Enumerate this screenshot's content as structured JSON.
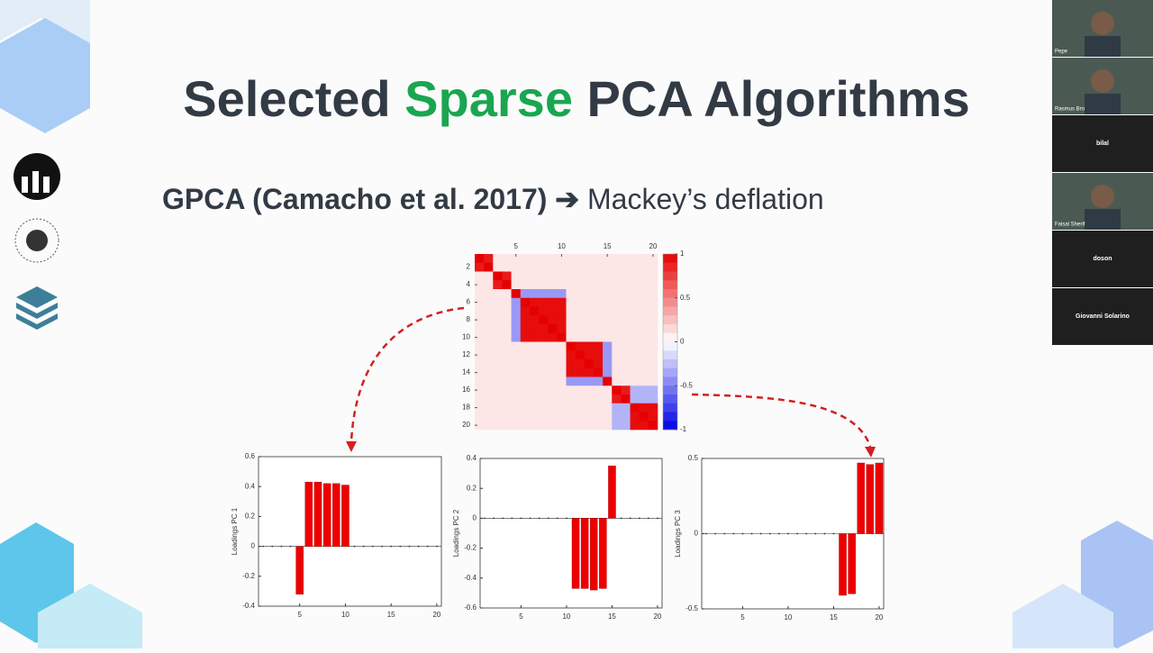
{
  "slide": {
    "title": {
      "before": "Selected",
      "highlight": "Sparse",
      "after": "PCA Algorithms"
    },
    "subtitle": {
      "reference": "GPCA (Camacho et al. 2017)",
      "arrow": "➔",
      "method": "Mackey’s deflation"
    }
  },
  "participants": [
    "Pepe",
    "Rasmus Bro",
    "bilal",
    "Faisal Sherif",
    "doson",
    "Giovanni Solarino"
  ],
  "chart_data": [
    {
      "type": "heatmap",
      "xticks": [
        5,
        10,
        15,
        20
      ],
      "yticks": [
        2,
        4,
        6,
        8,
        10,
        12,
        14,
        16,
        18,
        20
      ],
      "clim": [
        -1,
        1
      ],
      "cticks": [
        1,
        0.5,
        0,
        -0.5,
        -1
      ],
      "matrix": [
        [
          1,
          0.9,
          0.1,
          0.1,
          0.1,
          0.1,
          0.1,
          0.1,
          0.1,
          0.1,
          0.1,
          0.1,
          0.1,
          0.1,
          0.1,
          0.1,
          0.1,
          0.1,
          0.1,
          0.1
        ],
        [
          0.9,
          1,
          0.1,
          0.1,
          0.1,
          0.1,
          0.1,
          0.1,
          0.1,
          0.1,
          0.1,
          0.1,
          0.1,
          0.1,
          0.1,
          0.1,
          0.1,
          0.1,
          0.1,
          0.1
        ],
        [
          0.1,
          0.1,
          1,
          0.9,
          0.1,
          0.1,
          0.1,
          0.1,
          0.1,
          0.1,
          0.1,
          0.1,
          0.1,
          0.1,
          0.1,
          0.1,
          0.1,
          0.1,
          0.1,
          0.1
        ],
        [
          0.1,
          0.1,
          0.9,
          1,
          0.1,
          0.1,
          0.1,
          0.1,
          0.1,
          0.1,
          0.1,
          0.1,
          0.1,
          0.1,
          0.1,
          0.1,
          0.1,
          0.1,
          0.1,
          0.1
        ],
        [
          0.1,
          0.1,
          0.1,
          0.1,
          1,
          -0.4,
          -0.4,
          -0.4,
          -0.4,
          -0.4,
          0.1,
          0.1,
          0.1,
          0.1,
          0.1,
          0.1,
          0.1,
          0.1,
          0.1,
          0.1
        ],
        [
          0.1,
          0.1,
          0.1,
          0.1,
          -0.4,
          1,
          0.95,
          0.95,
          0.95,
          0.95,
          0.1,
          0.1,
          0.1,
          0.1,
          0.1,
          0.1,
          0.1,
          0.1,
          0.1,
          0.1
        ],
        [
          0.1,
          0.1,
          0.1,
          0.1,
          -0.4,
          0.95,
          1,
          0.95,
          0.95,
          0.95,
          0.1,
          0.1,
          0.1,
          0.1,
          0.1,
          0.1,
          0.1,
          0.1,
          0.1,
          0.1
        ],
        [
          0.1,
          0.1,
          0.1,
          0.1,
          -0.4,
          0.95,
          0.95,
          1,
          0.95,
          0.95,
          0.1,
          0.1,
          0.1,
          0.1,
          0.1,
          0.1,
          0.1,
          0.1,
          0.1,
          0.1
        ],
        [
          0.1,
          0.1,
          0.1,
          0.1,
          -0.4,
          0.95,
          0.95,
          0.95,
          1,
          0.95,
          0.1,
          0.1,
          0.1,
          0.1,
          0.1,
          0.1,
          0.1,
          0.1,
          0.1,
          0.1
        ],
        [
          0.1,
          0.1,
          0.1,
          0.1,
          -0.4,
          0.95,
          0.95,
          0.95,
          0.95,
          1,
          0.1,
          0.1,
          0.1,
          0.1,
          0.1,
          0.1,
          0.1,
          0.1,
          0.1,
          0.1
        ],
        [
          0.1,
          0.1,
          0.1,
          0.1,
          0.1,
          0.1,
          0.1,
          0.1,
          0.1,
          0.1,
          1,
          0.95,
          0.95,
          0.95,
          -0.4,
          0.1,
          0.1,
          0.1,
          0.1,
          0.1
        ],
        [
          0.1,
          0.1,
          0.1,
          0.1,
          0.1,
          0.1,
          0.1,
          0.1,
          0.1,
          0.1,
          0.95,
          1,
          0.95,
          0.95,
          -0.4,
          0.1,
          0.1,
          0.1,
          0.1,
          0.1
        ],
        [
          0.1,
          0.1,
          0.1,
          0.1,
          0.1,
          0.1,
          0.1,
          0.1,
          0.1,
          0.1,
          0.95,
          0.95,
          1,
          0.95,
          -0.4,
          0.1,
          0.1,
          0.1,
          0.1,
          0.1
        ],
        [
          0.1,
          0.1,
          0.1,
          0.1,
          0.1,
          0.1,
          0.1,
          0.1,
          0.1,
          0.1,
          0.95,
          0.95,
          0.95,
          1,
          -0.4,
          0.1,
          0.1,
          0.1,
          0.1,
          0.1
        ],
        [
          0.1,
          0.1,
          0.1,
          0.1,
          0.1,
          0.1,
          0.1,
          0.1,
          0.1,
          0.1,
          -0.4,
          -0.4,
          -0.4,
          -0.4,
          1,
          0.1,
          0.1,
          0.1,
          0.1,
          0.1
        ],
        [
          0.1,
          0.1,
          0.1,
          0.1,
          0.1,
          0.1,
          0.1,
          0.1,
          0.1,
          0.1,
          0.1,
          0.1,
          0.1,
          0.1,
          0.1,
          1,
          0.9,
          -0.3,
          -0.3,
          -0.3
        ],
        [
          0.1,
          0.1,
          0.1,
          0.1,
          0.1,
          0.1,
          0.1,
          0.1,
          0.1,
          0.1,
          0.1,
          0.1,
          0.1,
          0.1,
          0.1,
          0.9,
          1,
          -0.3,
          -0.3,
          -0.3
        ],
        [
          0.1,
          0.1,
          0.1,
          0.1,
          0.1,
          0.1,
          0.1,
          0.1,
          0.1,
          0.1,
          0.1,
          0.1,
          0.1,
          0.1,
          0.1,
          -0.3,
          -0.3,
          1,
          0.95,
          0.95
        ],
        [
          0.1,
          0.1,
          0.1,
          0.1,
          0.1,
          0.1,
          0.1,
          0.1,
          0.1,
          0.1,
          0.1,
          0.1,
          0.1,
          0.1,
          0.1,
          -0.3,
          -0.3,
          0.95,
          1,
          0.95
        ],
        [
          0.1,
          0.1,
          0.1,
          0.1,
          0.1,
          0.1,
          0.1,
          0.1,
          0.1,
          0.1,
          0.1,
          0.1,
          0.1,
          0.1,
          0.1,
          -0.3,
          -0.3,
          0.95,
          0.95,
          1
        ]
      ]
    },
    {
      "type": "bar",
      "y_label": "Loadings PC 1",
      "color": "#ee0000",
      "x": [
        1,
        2,
        3,
        4,
        5,
        6,
        7,
        8,
        9,
        10,
        11,
        12,
        13,
        14,
        15,
        16,
        17,
        18,
        19,
        20
      ],
      "values": [
        0,
        0,
        0,
        0,
        -0.32,
        0.43,
        0.43,
        0.42,
        0.42,
        0.41,
        0,
        0,
        0,
        0,
        0,
        0,
        0,
        0,
        0,
        0
      ],
      "xlim": [
        0.5,
        20.5
      ],
      "xticks": [
        5,
        10,
        15,
        20
      ],
      "ylim": [
        -0.4,
        0.6
      ],
      "yticks": [
        -0.4,
        -0.2,
        0,
        0.2,
        0.4,
        0.6
      ]
    },
    {
      "type": "bar",
      "y_label": "Loadings PC 2",
      "color": "#ee0000",
      "x": [
        1,
        2,
        3,
        4,
        5,
        6,
        7,
        8,
        9,
        10,
        11,
        12,
        13,
        14,
        15,
        16,
        17,
        18,
        19,
        20
      ],
      "values": [
        0,
        0,
        0,
        0,
        0,
        0,
        0,
        0,
        0,
        0,
        -0.47,
        -0.47,
        -0.48,
        -0.47,
        0.35,
        0,
        0,
        0,
        0,
        0
      ],
      "xlim": [
        0.5,
        20.5
      ],
      "xticks": [
        5,
        10,
        15,
        20
      ],
      "ylim": [
        -0.6,
        0.4
      ],
      "yticks": [
        -0.6,
        -0.4,
        -0.2,
        0,
        0.2,
        0.4
      ]
    },
    {
      "type": "bar",
      "y_label": "Loadings PC 3",
      "color": "#ee0000",
      "x": [
        1,
        2,
        3,
        4,
        5,
        6,
        7,
        8,
        9,
        10,
        11,
        12,
        13,
        14,
        15,
        16,
        17,
        18,
        19,
        20
      ],
      "values": [
        0,
        0,
        0,
        0,
        0,
        0,
        0,
        0,
        0,
        0,
        0,
        0,
        0,
        0,
        0,
        -0.41,
        -0.4,
        0.47,
        0.46,
        0.47
      ],
      "xlim": [
        0.5,
        20.5
      ],
      "xticks": [
        5,
        10,
        15,
        20
      ],
      "ylim": [
        -0.5,
        0.5
      ],
      "yticks": [
        -0.5,
        0,
        0.5
      ]
    }
  ]
}
